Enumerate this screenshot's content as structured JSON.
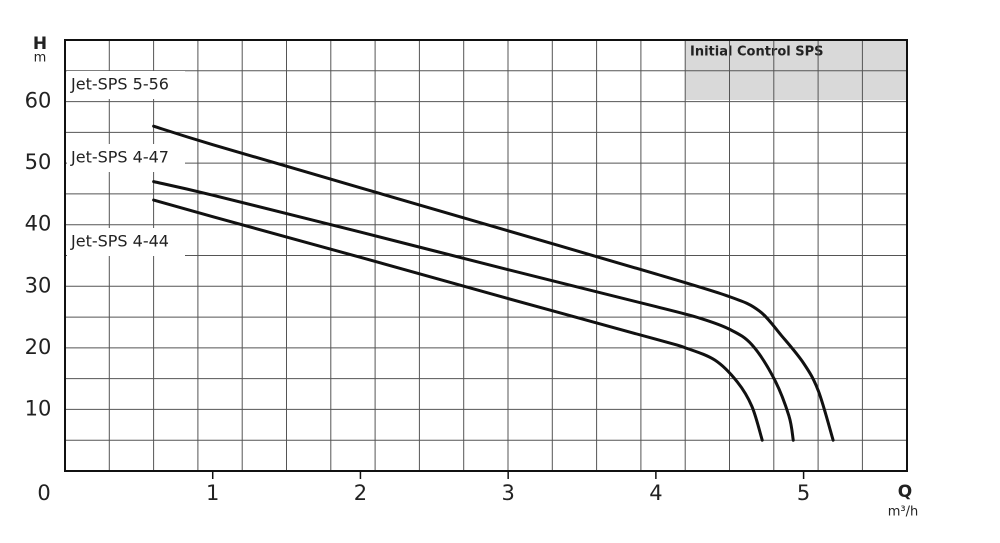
{
  "chart_data": {
    "type": "line",
    "annotation": "Initial Control SPS",
    "x_label_symbol": "Q",
    "x_label_unit": "m³/h",
    "y_label_symbol": "H",
    "y_label_unit": "m",
    "xlim": [
      0,
      5.7
    ],
    "xticks": [
      1,
      2,
      3,
      4,
      5
    ],
    "ylim": [
      0,
      70
    ],
    "yticks": [
      0,
      10,
      20,
      30,
      40,
      50,
      60
    ],
    "grid": true,
    "series": [
      {
        "name": "Jet-SPS 5-56",
        "color": "#111111",
        "x": [
          0.6,
          1,
          2,
          3,
          4,
          4.5,
          4.7,
          4.85,
          5,
          5.1,
          5.2
        ],
        "values": [
          56,
          53,
          46,
          39,
          32,
          28.3,
          26,
          22,
          17.5,
          13,
          5
        ]
      },
      {
        "name": "Jet-SPS 4-47",
        "color": "#111111",
        "x": [
          0.6,
          1,
          2,
          3,
          4,
          4.3,
          4.5,
          4.65,
          4.8,
          4.9,
          4.93
        ],
        "values": [
          47,
          44.8,
          38.8,
          32.7,
          26.7,
          24.8,
          23,
          20.5,
          15,
          9,
          5
        ]
      },
      {
        "name": "Jet-SPS 4-44",
        "color": "#111111",
        "x": [
          0.6,
          1,
          2,
          3,
          4,
          4.2,
          4.4,
          4.55,
          4.65,
          4.72
        ],
        "values": [
          44,
          41.3,
          34.7,
          28,
          21.4,
          20,
          18,
          14.5,
          10.5,
          5
        ]
      }
    ]
  }
}
